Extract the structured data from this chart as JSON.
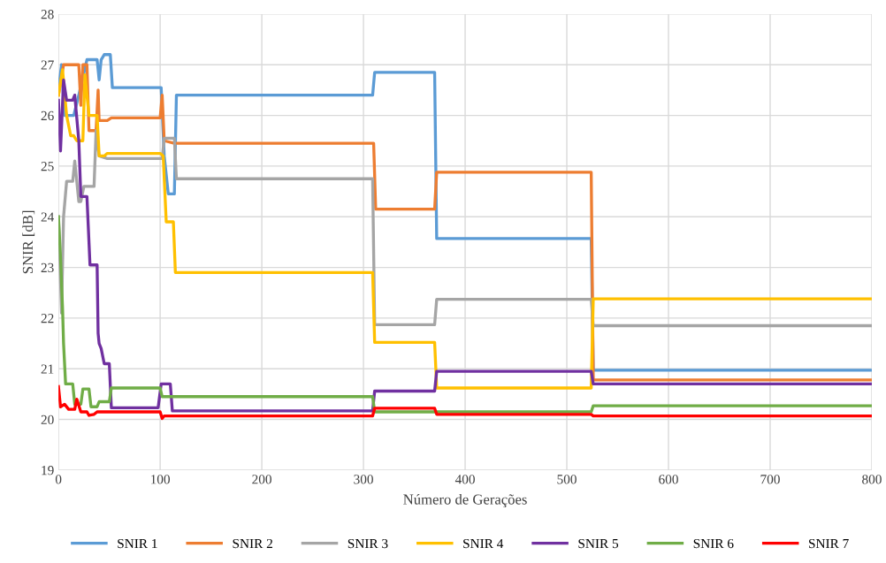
{
  "chart_data": {
    "type": "line",
    "xlabel": "Número de Gerações",
    "ylabel": "SNIR [dB]",
    "xlim": [
      0,
      800
    ],
    "xticks": [
      0,
      100,
      200,
      300,
      400,
      500,
      600,
      700,
      800
    ],
    "ylim": [
      19,
      28
    ],
    "yticks": [
      19,
      20,
      21,
      22,
      23,
      24,
      25,
      26,
      27,
      28
    ],
    "grid": true,
    "legend": "bottom",
    "marker": "none",
    "line_style": "solid",
    "series": [
      {
        "name": "SNIR 1",
        "color": "#5b9bd5",
        "x": [
          0,
          3,
          6,
          15,
          20,
          28,
          38,
          40,
          42,
          45,
          51,
          53,
          101,
          104,
          108,
          114,
          116,
          309,
          311,
          370,
          372,
          524,
          526,
          800
        ],
        "values": [
          26.5,
          27.0,
          26.0,
          26.0,
          26.4,
          27.1,
          27.1,
          26.7,
          27.1,
          27.2,
          27.2,
          26.55,
          26.55,
          25.2,
          24.45,
          24.45,
          26.4,
          26.4,
          26.85,
          26.85,
          23.57,
          23.57,
          20.97,
          20.97
        ]
      },
      {
        "name": "SNIR 2",
        "color": "#ed7d31",
        "x": [
          0,
          5,
          20,
          22,
          24,
          28,
          30,
          37,
          39,
          40,
          48,
          52,
          100,
          102,
          104,
          114,
          310,
          312,
          370,
          372,
          524,
          526,
          800
        ],
        "values": [
          26.4,
          27.0,
          27.0,
          26.2,
          27.0,
          27.0,
          25.7,
          25.7,
          26.5,
          25.9,
          25.9,
          25.95,
          25.95,
          26.4,
          25.5,
          25.45,
          25.45,
          24.15,
          24.15,
          24.88,
          24.88,
          20.78,
          20.78
        ]
      },
      {
        "name": "SNIR 3",
        "color": "#a5a5a5",
        "x": [
          0,
          3,
          5,
          8,
          14,
          16,
          20,
          22,
          25,
          35,
          37,
          40,
          48,
          102,
          104,
          114,
          116,
          309,
          311,
          370,
          372,
          524,
          526,
          800
        ],
        "values": [
          24.0,
          22.1,
          24.0,
          24.7,
          24.7,
          25.1,
          24.3,
          24.3,
          24.6,
          24.6,
          25.7,
          25.2,
          25.15,
          25.15,
          25.55,
          25.55,
          24.75,
          24.75,
          21.87,
          21.87,
          22.37,
          22.37,
          21.85,
          21.85
        ]
      },
      {
        "name": "SNIR 4",
        "color": "#ffc000",
        "x": [
          0,
          4,
          8,
          12,
          15,
          18,
          24,
          26,
          30,
          38,
          40,
          45,
          48,
          100,
          103,
          106,
          113,
          115,
          309,
          311,
          370,
          372,
          524,
          526,
          800
        ],
        "values": [
          26.4,
          26.9,
          26.0,
          25.6,
          25.6,
          25.5,
          25.5,
          26.8,
          26.0,
          26.0,
          25.2,
          25.2,
          25.25,
          25.25,
          25.2,
          23.9,
          23.9,
          22.9,
          22.9,
          21.52,
          21.52,
          20.62,
          20.62,
          22.38,
          22.38
        ]
      },
      {
        "name": "SNIR 5",
        "color": "#7030a0",
        "x": [
          0,
          2,
          5,
          8,
          14,
          16,
          20,
          22,
          28,
          31,
          38,
          39,
          40,
          42,
          45,
          50,
          52,
          98,
          101,
          110,
          112,
          309,
          311,
          370,
          372,
          524,
          526,
          800
        ],
        "values": [
          26.3,
          25.3,
          26.7,
          26.3,
          26.3,
          26.4,
          25.5,
          24.4,
          24.4,
          23.05,
          23.05,
          21.7,
          21.5,
          21.4,
          21.1,
          21.1,
          20.23,
          20.23,
          20.7,
          20.7,
          20.17,
          20.17,
          20.56,
          20.56,
          20.95,
          20.95,
          20.7,
          20.7
        ]
      },
      {
        "name": "SNIR 6",
        "color": "#70ad47",
        "x": [
          0,
          2,
          4,
          5,
          7,
          14,
          16,
          22,
          24,
          30,
          32,
          38,
          40,
          50,
          52,
          100,
          102,
          309,
          311,
          524,
          526,
          800
        ],
        "values": [
          24.0,
          23.2,
          22.2,
          21.5,
          20.7,
          20.7,
          20.3,
          20.3,
          20.6,
          20.6,
          20.25,
          20.25,
          20.35,
          20.35,
          20.62,
          20.62,
          20.45,
          20.45,
          20.15,
          20.15,
          20.27,
          20.27
        ]
      },
      {
        "name": "SNIR 7",
        "color": "#ff0000",
        "x": [
          0,
          2,
          6,
          10,
          16,
          18,
          22,
          28,
          30,
          35,
          38,
          100,
          102,
          104,
          309,
          311,
          370,
          372,
          524,
          526,
          800
        ],
        "values": [
          20.65,
          20.25,
          20.3,
          20.2,
          20.2,
          20.4,
          20.15,
          20.15,
          20.08,
          20.1,
          20.15,
          20.15,
          20.02,
          20.07,
          20.07,
          20.22,
          20.22,
          20.1,
          20.1,
          20.07,
          20.07
        ]
      }
    ]
  }
}
